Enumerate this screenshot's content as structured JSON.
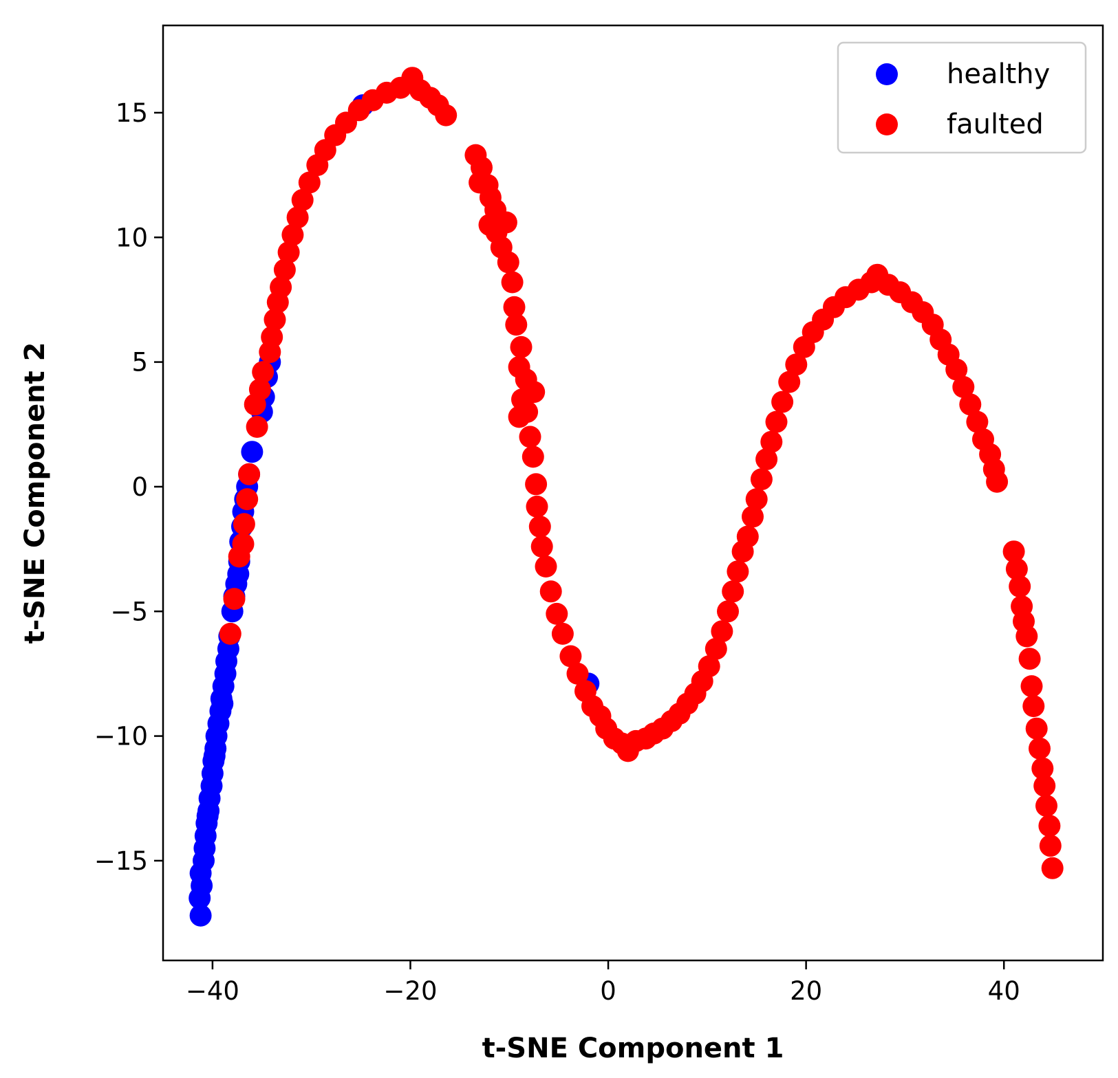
{
  "chart_data": {
    "type": "scatter",
    "title": "",
    "xlabel": "t-SNE Component 1",
    "ylabel": "t-SNE Component 2",
    "xlim": [
      -45,
      50
    ],
    "ylim": [
      -19,
      18.5
    ],
    "xticks": [
      -40,
      -20,
      0,
      20,
      40
    ],
    "yticks": [
      -15,
      -10,
      -5,
      0,
      5,
      10,
      15
    ],
    "xtick_labels": [
      "−40",
      "−20",
      "0",
      "20",
      "40"
    ],
    "ytick_labels": [
      "−15",
      "−10",
      "−5",
      "0",
      "5",
      "10",
      "15"
    ],
    "grid": false,
    "legend_position": "top-right",
    "series": [
      {
        "name": "healthy",
        "color": "#0000ff",
        "points": [
          [
            -41.2,
            -17.2
          ],
          [
            -41.3,
            -16.5
          ],
          [
            -41.1,
            -16.0
          ],
          [
            -41.2,
            -15.5
          ],
          [
            -40.9,
            -15.0
          ],
          [
            -40.8,
            -14.5
          ],
          [
            -40.7,
            -14.0
          ],
          [
            -40.6,
            -13.5
          ],
          [
            -40.4,
            -13.0
          ],
          [
            -40.3,
            -12.5
          ],
          [
            -40.1,
            -12.0
          ],
          [
            -40.0,
            -11.5
          ],
          [
            -39.9,
            -11.0
          ],
          [
            -39.7,
            -10.5
          ],
          [
            -39.6,
            -10.0
          ],
          [
            -39.4,
            -9.5
          ],
          [
            -39.2,
            -9.0
          ],
          [
            -39.1,
            -8.5
          ],
          [
            -38.9,
            -8.0
          ],
          [
            -38.7,
            -7.5
          ],
          [
            -38.6,
            -7.0
          ],
          [
            -38.4,
            -6.5
          ],
          [
            -38.3,
            -6.0
          ],
          [
            -38.0,
            -5.0
          ],
          [
            -37.8,
            -4.4
          ],
          [
            -37.6,
            -3.9
          ],
          [
            -37.4,
            -3.5
          ],
          [
            -37.3,
            -3.0
          ],
          [
            -37.2,
            -2.2
          ],
          [
            -37.0,
            -1.6
          ],
          [
            -36.9,
            -1.0
          ],
          [
            -36.7,
            -0.5
          ],
          [
            -36.5,
            0.0
          ],
          [
            -36.3,
            0.5
          ],
          [
            -36.0,
            1.4
          ],
          [
            -35.0,
            3.0
          ],
          [
            -34.8,
            3.6
          ],
          [
            -34.5,
            4.4
          ],
          [
            -34.2,
            5.0
          ],
          [
            -24.8,
            15.3
          ],
          [
            -2.0,
            -7.9
          ],
          [
            -40.5,
            -13.2
          ],
          [
            -39.8,
            -10.8
          ],
          [
            -39.0,
            -8.7
          ]
        ]
      },
      {
        "name": "faulted",
        "color": "#ff0000",
        "points": [
          [
            -38.2,
            -5.9
          ],
          [
            -37.8,
            -4.5
          ],
          [
            -37.3,
            -2.8
          ],
          [
            -36.9,
            -2.3
          ],
          [
            -36.8,
            -1.5
          ],
          [
            -36.5,
            -0.5
          ],
          [
            -36.3,
            0.5
          ],
          [
            -35.5,
            2.4
          ],
          [
            -35.7,
            3.3
          ],
          [
            -35.2,
            3.9
          ],
          [
            -34.9,
            4.6
          ],
          [
            -34.2,
            5.4
          ],
          [
            -34.0,
            6.0
          ],
          [
            -33.7,
            6.7
          ],
          [
            -33.4,
            7.4
          ],
          [
            -33.1,
            8.0
          ],
          [
            -32.7,
            8.7
          ],
          [
            -32.3,
            9.4
          ],
          [
            -31.9,
            10.1
          ],
          [
            -31.4,
            10.8
          ],
          [
            -30.9,
            11.5
          ],
          [
            -30.2,
            12.2
          ],
          [
            -29.4,
            12.9
          ],
          [
            -28.6,
            13.5
          ],
          [
            -27.6,
            14.1
          ],
          [
            -26.5,
            14.6
          ],
          [
            -25.2,
            15.1
          ],
          [
            -23.8,
            15.5
          ],
          [
            -22.4,
            15.8
          ],
          [
            -21.0,
            16.0
          ],
          [
            -19.8,
            16.4
          ],
          [
            -19.0,
            15.9
          ],
          [
            -18.0,
            15.6
          ],
          [
            -17.2,
            15.3
          ],
          [
            -16.4,
            14.9
          ],
          [
            -13.4,
            13.3
          ],
          [
            -12.8,
            12.8
          ],
          [
            -13.0,
            12.2
          ],
          [
            -12.2,
            12.1
          ],
          [
            -11.9,
            11.6
          ],
          [
            -11.4,
            11.1
          ],
          [
            -12.0,
            10.5
          ],
          [
            -10.3,
            10.6
          ],
          [
            -11.3,
            10.2
          ],
          [
            -10.8,
            9.6
          ],
          [
            -10.1,
            9.0
          ],
          [
            -9.7,
            8.2
          ],
          [
            -9.5,
            7.2
          ],
          [
            -9.3,
            6.5
          ],
          [
            -8.8,
            5.6
          ],
          [
            -9.0,
            4.8
          ],
          [
            -8.3,
            4.3
          ],
          [
            -8.7,
            3.5
          ],
          [
            -7.5,
            3.8
          ],
          [
            -8.2,
            3.0
          ],
          [
            -9.0,
            2.8
          ],
          [
            -7.9,
            2.0
          ],
          [
            -7.6,
            1.2
          ],
          [
            -7.3,
            0.1
          ],
          [
            -7.2,
            -0.8
          ],
          [
            -6.9,
            -1.6
          ],
          [
            -6.7,
            -2.4
          ],
          [
            -6.3,
            -3.2
          ],
          [
            -5.8,
            -4.2
          ],
          [
            -5.2,
            -5.1
          ],
          [
            -4.6,
            -5.9
          ],
          [
            -3.8,
            -6.8
          ],
          [
            -3.1,
            -7.5
          ],
          [
            -2.3,
            -8.2
          ],
          [
            -1.6,
            -8.8
          ],
          [
            -0.8,
            -9.2
          ],
          [
            -0.2,
            -9.7
          ],
          [
            0.6,
            -10.1
          ],
          [
            1.4,
            -10.3
          ],
          [
            2.0,
            -10.6
          ],
          [
            2.8,
            -10.2
          ],
          [
            3.8,
            -10.1
          ],
          [
            4.6,
            -9.9
          ],
          [
            5.5,
            -9.7
          ],
          [
            6.4,
            -9.4
          ],
          [
            7.2,
            -9.1
          ],
          [
            8.0,
            -8.7
          ],
          [
            8.8,
            -8.3
          ],
          [
            9.5,
            -7.8
          ],
          [
            10.2,
            -7.2
          ],
          [
            10.9,
            -6.5
          ],
          [
            11.5,
            -5.8
          ],
          [
            12.1,
            -5.0
          ],
          [
            12.6,
            -4.2
          ],
          [
            13.1,
            -3.4
          ],
          [
            13.6,
            -2.6
          ],
          [
            14.1,
            -2.0
          ],
          [
            14.6,
            -1.2
          ],
          [
            15.0,
            -0.5
          ],
          [
            15.5,
            0.3
          ],
          [
            16.0,
            1.1
          ],
          [
            16.5,
            1.8
          ],
          [
            17.0,
            2.6
          ],
          [
            17.6,
            3.4
          ],
          [
            18.3,
            4.2
          ],
          [
            19.0,
            4.9
          ],
          [
            19.8,
            5.6
          ],
          [
            20.7,
            6.2
          ],
          [
            21.7,
            6.7
          ],
          [
            22.8,
            7.2
          ],
          [
            24.0,
            7.6
          ],
          [
            25.3,
            7.9
          ],
          [
            26.6,
            8.2
          ],
          [
            27.2,
            8.5
          ],
          [
            28.3,
            8.1
          ],
          [
            29.5,
            7.8
          ],
          [
            30.7,
            7.4
          ],
          [
            31.8,
            7.0
          ],
          [
            32.8,
            6.5
          ],
          [
            33.6,
            5.9
          ],
          [
            34.4,
            5.3
          ],
          [
            35.2,
            4.7
          ],
          [
            35.9,
            4.0
          ],
          [
            36.6,
            3.3
          ],
          [
            37.3,
            2.6
          ],
          [
            37.9,
            1.9
          ],
          [
            38.6,
            1.3
          ],
          [
            39.0,
            0.7
          ],
          [
            39.3,
            0.2
          ],
          [
            41.0,
            -2.6
          ],
          [
            41.3,
            -3.3
          ],
          [
            41.6,
            -4.0
          ],
          [
            41.8,
            -4.8
          ],
          [
            42.0,
            -5.4
          ],
          [
            42.3,
            -6.0
          ],
          [
            42.6,
            -6.9
          ],
          [
            42.8,
            -8.0
          ],
          [
            43.0,
            -8.8
          ],
          [
            43.3,
            -9.7
          ],
          [
            43.6,
            -10.5
          ],
          [
            43.9,
            -11.3
          ],
          [
            44.1,
            -12.0
          ],
          [
            44.3,
            -12.8
          ],
          [
            44.6,
            -13.6
          ],
          [
            44.7,
            -14.4
          ],
          [
            44.9,
            -15.3
          ]
        ]
      }
    ]
  }
}
